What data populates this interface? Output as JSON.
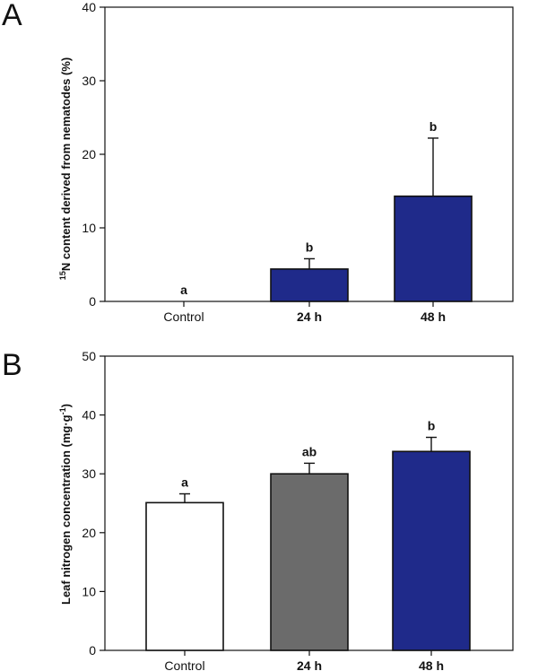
{
  "chart_data": [
    {
      "panel": "A",
      "type": "bar",
      "categories": [
        "Control",
        "24 h",
        "48 h"
      ],
      "values": [
        0,
        4.4,
        14.3
      ],
      "errors": [
        0,
        1.4,
        7.9
      ],
      "significance": [
        "a",
        "b",
        "b"
      ],
      "bar_colors": [
        "#ffffff",
        "#1f2a8a",
        "#1f2a8a"
      ],
      "ylabel_pre": "15",
      "ylabel_main": "N content derived from nematodes (%)",
      "xlabel": "",
      "ylim": [
        0,
        40
      ],
      "yticks": [
        0,
        10,
        20,
        30,
        40
      ]
    },
    {
      "panel": "B",
      "type": "bar",
      "categories": [
        "Control",
        "24 h",
        "48 h"
      ],
      "values": [
        25.1,
        30.0,
        33.8
      ],
      "errors": [
        1.5,
        1.8,
        2.4
      ],
      "significance": [
        "a",
        "ab",
        "b"
      ],
      "bar_colors": [
        "#ffffff",
        "#6b6b6b",
        "#1f2a8a"
      ],
      "ylabel_main": "Leaf nitrogen concentration (mg·g",
      "ylabel_sup": "-1",
      "ylabel_post": ")",
      "xlabel": "",
      "ylim": [
        0,
        50
      ],
      "yticks": [
        0,
        10,
        20,
        30,
        40,
        50
      ]
    }
  ]
}
